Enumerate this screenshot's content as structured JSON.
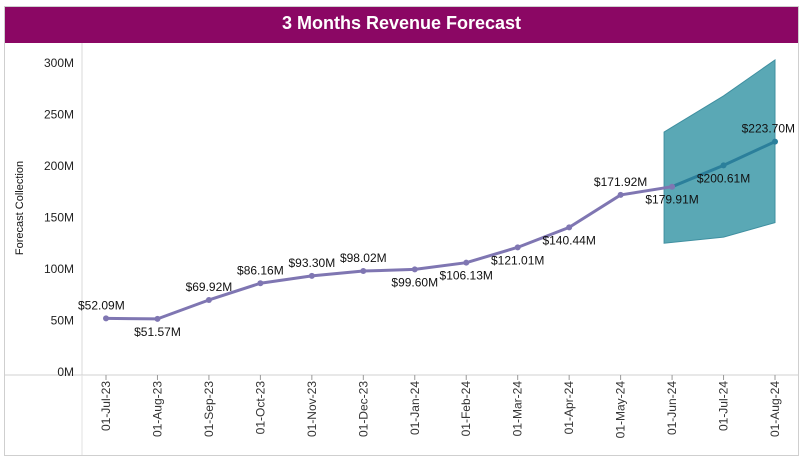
{
  "colors": {
    "title_bg": "#8b0764",
    "title_text": "#ffffff",
    "actual_line": "#7f76b2",
    "forecast_line": "#2b7f9b",
    "forecast_band": "#5aa8b5"
  },
  "chart_data": {
    "type": "line",
    "title": "3 Months Revenue Forecast",
    "ylabel": "Forecast Collection",
    "xlabel": "",
    "ylim": [
      0,
      300
    ],
    "y_unit": "M",
    "yticks": [
      {
        "value": 0,
        "label": "0M"
      },
      {
        "value": 50,
        "label": "50M"
      },
      {
        "value": 100,
        "label": "100M"
      },
      {
        "value": 150,
        "label": "150M"
      },
      {
        "value": 200,
        "label": "200M"
      },
      {
        "value": 250,
        "label": "250M"
      },
      {
        "value": 300,
        "label": "300M"
      }
    ],
    "categories": [
      "01-Jul-23",
      "01-Aug-23",
      "01-Sep-23",
      "01-Oct-23",
      "01-Nov-23",
      "01-Dec-23",
      "01-Jan-24",
      "01-Feb-24",
      "01-Mar-24",
      "01-Apr-24",
      "01-May-24",
      "01-Jun-24",
      "01-Jul-24",
      "01-Aug-24"
    ],
    "series": [
      {
        "values": [
          52.09,
          51.57,
          69.92,
          86.16,
          93.3,
          98.02,
          99.6,
          106.13,
          121.01,
          140.44,
          171.92,
          179.91,
          200.61,
          223.7
        ],
        "labels": [
          "$52.09M",
          "$51.57M",
          "$69.92M",
          "$86.16M",
          "$93.30M",
          "$98.02M",
          "$99.60M",
          "$106.13M",
          "$121.01M",
          "$140.44M",
          "$171.92M",
          "$179.91M",
          "$200.61M",
          "$223.70M"
        ],
        "label_pos": [
          "above",
          "below",
          "above",
          "above",
          "above",
          "above",
          "below",
          "below",
          "below",
          "below",
          "above",
          "below",
          "below",
          "above"
        ]
      }
    ],
    "forecast": {
      "start_index": 11,
      "upper": [
        233,
        268,
        303
      ],
      "lower": [
        125,
        131,
        145
      ]
    },
    "grid": false,
    "legend": "none"
  }
}
